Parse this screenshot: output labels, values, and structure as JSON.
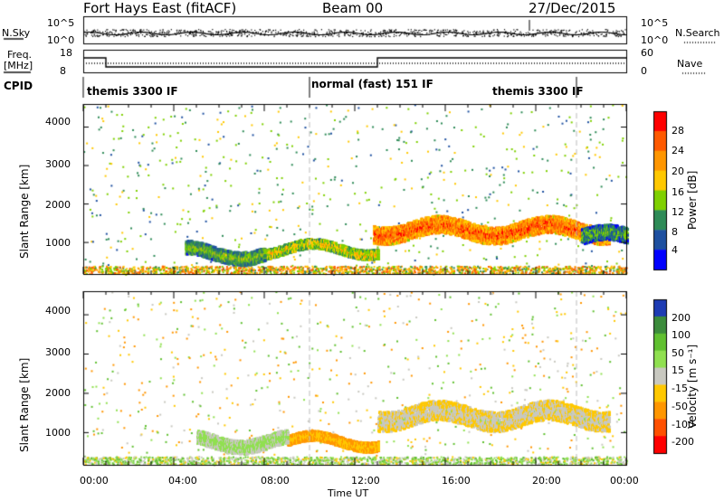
{
  "header": {
    "radar": "Fort Hays East (fitACF)",
    "beam": "Beam 00",
    "date": "27/Dec/2015"
  },
  "panels": {
    "nsky": {
      "left_label": "N.Sky",
      "left_top": "10^5",
      "left_bottom": "10^0",
      "right_label": "N.Search",
      "right_top": "10^5",
      "right_bottom": "10^0"
    },
    "freq": {
      "left_label_1": "Freq.",
      "left_label_2": "[MHz]",
      "left_top": "18",
      "left_bottom": "8",
      "right_label": "Nave",
      "right_top": "60",
      "right_bottom": "0"
    },
    "cpid": {
      "label": "CPID",
      "segments": [
        {
          "text": "themis 3300 IF",
          "start_h": 0.0,
          "end_h": 10.0
        },
        {
          "text": "normal (fast) 151 IF",
          "start_h": 10.0,
          "end_h": 21.8
        },
        {
          "text": "themis 3300 IF",
          "start_h": 18.0,
          "end_h": 21.8
        }
      ]
    }
  },
  "colorbars": {
    "power": {
      "label": "Power [dB]",
      "ticks": [
        "28",
        "24",
        "20",
        "16",
        "12",
        "8",
        "4"
      ],
      "colors": [
        "#ff0000",
        "#ff5a00",
        "#ff9600",
        "#ffc800",
        "#7fd000",
        "#2e8b57",
        "#1e50a0",
        "#0000ff"
      ]
    },
    "velocity": {
      "label": "Velocity [m s⁻¹]",
      "ticks": [
        "200",
        "100",
        "50",
        "15",
        "-15",
        "-50",
        "-100",
        "-200"
      ],
      "colors": [
        "#1e3cb4",
        "#3c8c3c",
        "#60c030",
        "#90e050",
        "#c8c8c0",
        "#ffc800",
        "#ff9600",
        "#ff5000",
        "#ff0000"
      ]
    }
  },
  "chart_data": [
    {
      "type": "heatmap",
      "title": "Power",
      "xlabel": "Time UT",
      "ylabel": "Slant Range [km]",
      "x_ticks": [
        "00:00",
        "04:00",
        "08:00",
        "12:00",
        "16:00",
        "20:00",
        "00:00"
      ],
      "y_ticks": [
        "1000",
        "2000",
        "3000",
        "4000"
      ],
      "xlim_hours": [
        0,
        24
      ],
      "ylim_km": [
        180,
        4600
      ],
      "dashed_lines_hours": [
        10.0,
        21.8
      ],
      "bands": [
        {
          "t0": 12.8,
          "t1": 23.2,
          "r_center": 1350,
          "r_width": 450,
          "value": 24
        },
        {
          "t0": 8.0,
          "t1": 13.0,
          "r_center": 850,
          "r_width": 250,
          "value": 16
        },
        {
          "t0": 4.5,
          "t1": 8.0,
          "r_center": 750,
          "r_width": 350,
          "value": 12
        },
        {
          "t0": 22.0,
          "t1": 24.0,
          "r_center": 1150,
          "r_width": 400,
          "value": 10
        }
      ]
    },
    {
      "type": "heatmap",
      "title": "Velocity",
      "xlabel": "Time UT",
      "ylabel": "Slant Range [km]",
      "x_ticks": [
        "00:00",
        "04:00",
        "08:00",
        "12:00",
        "16:00",
        "20:00",
        "00:00"
      ],
      "y_ticks": [
        "1000",
        "2000",
        "3000",
        "4000"
      ],
      "xlim_hours": [
        0,
        24
      ],
      "ylim_km": [
        180,
        4600
      ],
      "dashed_lines_hours": [
        10.0,
        21.8
      ],
      "bands": [
        {
          "t0": 13.0,
          "t1": 23.2,
          "r_center": 1450,
          "r_width": 500,
          "value": 0
        },
        {
          "t0": 9.0,
          "t1": 13.0,
          "r_center": 800,
          "r_width": 250,
          "value": -40
        },
        {
          "t0": 5.0,
          "t1": 9.0,
          "r_center": 800,
          "r_width": 350,
          "value": 30
        }
      ]
    }
  ]
}
